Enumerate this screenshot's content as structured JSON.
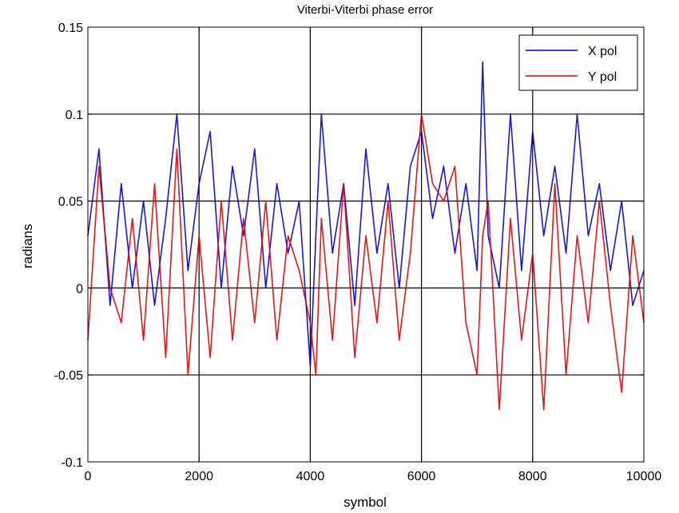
{
  "chart_data": {
    "type": "line",
    "title": "Viterbi-Viterbi phase error",
    "xlabel": "symbol",
    "ylabel": "radians",
    "xlim": [
      0,
      10000
    ],
    "ylim": [
      -0.1,
      0.15
    ],
    "xticks": [
      0,
      2000,
      4000,
      6000,
      8000,
      10000
    ],
    "xtick_labels": [
      "0",
      "2000",
      "4000",
      "6000",
      "8000",
      "10000"
    ],
    "yticks": [
      -0.1,
      -0.05,
      0,
      0.05,
      0.1,
      0.15
    ],
    "ytick_labels": [
      "-0.1",
      "-0.05",
      "0",
      "0.05",
      "0.1",
      "0.15"
    ],
    "grid": true,
    "legend_position": "top-right",
    "series": [
      {
        "name": "X pol",
        "color": "#0000cc",
        "x": [
          0,
          200,
          400,
          600,
          800,
          1000,
          1200,
          1400,
          1600,
          1800,
          2000,
          2200,
          2400,
          2600,
          2800,
          3000,
          3200,
          3400,
          3600,
          3800,
          4000,
          4100,
          4200,
          4400,
          4600,
          4800,
          5000,
          5200,
          5400,
          5600,
          5800,
          6000,
          6200,
          6400,
          6600,
          6800,
          7000,
          7100,
          7200,
          7400,
          7600,
          7800,
          8000,
          8200,
          8400,
          8600,
          8800,
          9000,
          9200,
          9400,
          9600,
          9800,
          10000
        ],
        "y": [
          0.03,
          0.08,
          -0.01,
          0.06,
          0.0,
          0.05,
          -0.01,
          0.04,
          0.1,
          0.01,
          0.06,
          0.09,
          0.0,
          0.07,
          0.03,
          0.08,
          0.0,
          0.06,
          0.02,
          0.05,
          -0.045,
          0.03,
          0.1,
          0.02,
          0.06,
          -0.01,
          0.08,
          0.02,
          0.06,
          0.0,
          0.07,
          0.09,
          0.04,
          0.07,
          0.02,
          0.06,
          0.01,
          0.13,
          0.03,
          0.0,
          0.1,
          0.01,
          0.09,
          0.03,
          0.07,
          0.02,
          0.1,
          0.03,
          0.06,
          0.01,
          0.05,
          -0.01,
          0.01
        ]
      },
      {
        "name": "Y pol",
        "color": "#dd0000",
        "x": [
          0,
          200,
          400,
          600,
          800,
          1000,
          1200,
          1400,
          1600,
          1800,
          2000,
          2200,
          2400,
          2600,
          2800,
          3000,
          3200,
          3400,
          3600,
          3800,
          4000,
          4100,
          4200,
          4400,
          4600,
          4800,
          5000,
          5200,
          5400,
          5600,
          5800,
          6000,
          6200,
          6400,
          6600,
          6800,
          7000,
          7100,
          7200,
          7400,
          7600,
          7800,
          8000,
          8200,
          8400,
          8600,
          8800,
          9000,
          9200,
          9400,
          9600,
          9800,
          10000
        ],
        "y": [
          -0.03,
          0.07,
          0.0,
          -0.02,
          0.04,
          -0.03,
          0.06,
          -0.04,
          0.08,
          -0.05,
          0.03,
          -0.04,
          0.05,
          -0.03,
          0.04,
          -0.02,
          0.05,
          -0.03,
          0.03,
          0.01,
          -0.02,
          -0.05,
          0.04,
          -0.03,
          0.06,
          -0.04,
          0.03,
          -0.02,
          0.05,
          -0.03,
          0.02,
          0.1,
          0.06,
          0.05,
          0.07,
          -0.02,
          -0.05,
          0.03,
          0.05,
          -0.07,
          0.04,
          -0.03,
          0.02,
          -0.07,
          0.06,
          -0.05,
          0.03,
          -0.02,
          0.05,
          -0.01,
          -0.06,
          0.03,
          -0.02
        ]
      }
    ]
  }
}
